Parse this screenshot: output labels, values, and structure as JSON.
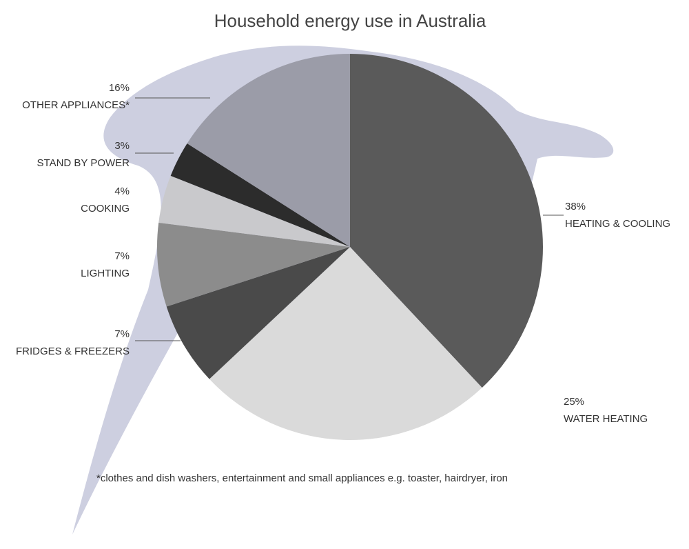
{
  "chart_data": {
    "type": "pie",
    "title": "Household energy use in Australia",
    "categories": [
      "HEATING & COOLING",
      "WATER HEATING",
      "FRIDGES & FREEZERS",
      "LIGHTING",
      "COOKING",
      "STAND BY POWER",
      "OTHER APPLIANCES*"
    ],
    "values": [
      38,
      25,
      7,
      7,
      4,
      3,
      16
    ],
    "value_labels": [
      "38%",
      "25%",
      "7%",
      "7%",
      "4%",
      "3%",
      "16%"
    ],
    "colors": [
      "#5a5a5a",
      "#dadada",
      "#4a4a4a",
      "#8c8c8c",
      "#c9c9cc",
      "#2c2c2c",
      "#9b9ca8"
    ],
    "footnote": "*clothes and dish washers, entertainment and small appliances e.g. toaster, hairdryer, iron"
  }
}
